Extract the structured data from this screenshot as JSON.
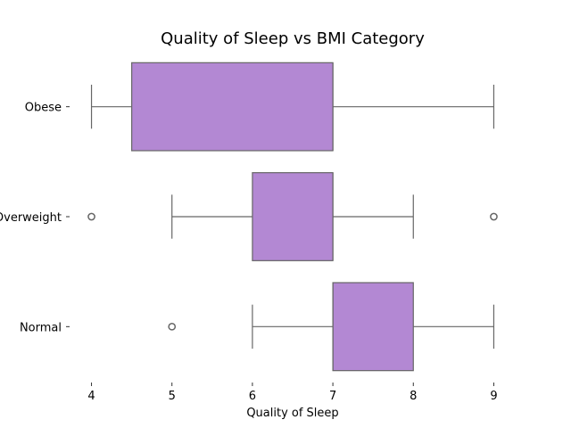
{
  "chart_data": {
    "type": "boxplot",
    "orientation": "horizontal",
    "title": "Quality of Sleep vs BMI Category",
    "xlabel": "Quality of Sleep",
    "ylabel": "",
    "xlim": [
      3.75,
      9.25
    ],
    "xticks": [
      "4",
      "5",
      "6",
      "7",
      "8",
      "9"
    ],
    "categories": [
      "Obese",
      "Overweight",
      "Normal"
    ],
    "box_color": "#b388d3",
    "edge_color": "#666666",
    "grid": false,
    "legend": "none",
    "series": [
      {
        "category": "Obese",
        "whisker_low": 4,
        "q1": 4.5,
        "median": 7,
        "q3": 7,
        "whisker_high": 9,
        "outliers": []
      },
      {
        "category": "Overweight",
        "whisker_low": 5,
        "q1": 6,
        "median": 7,
        "q3": 7,
        "whisker_high": 8,
        "outliers": [
          4,
          9
        ]
      },
      {
        "category": "Normal",
        "whisker_low": 6,
        "q1": 7,
        "median": 7,
        "q3": 8,
        "whisker_high": 9,
        "outliers": [
          5
        ]
      }
    ]
  }
}
